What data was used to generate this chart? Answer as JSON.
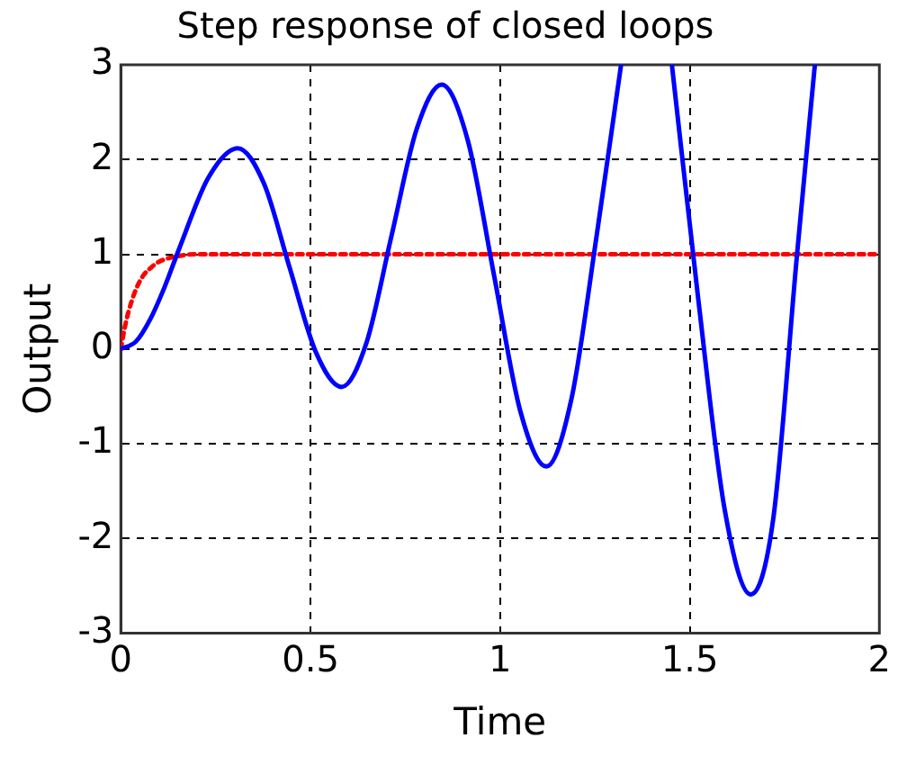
{
  "chart_data": {
    "type": "line",
    "title": "Step response of closed loops",
    "xlabel": "Time",
    "ylabel": "Output",
    "xlim": [
      0,
      2
    ],
    "xticks": [
      0,
      0.5,
      1,
      1.5,
      2
    ],
    "ylim": [
      -3,
      3
    ],
    "yticks": [
      -3,
      -2,
      -1,
      0,
      1,
      2,
      3
    ],
    "grid": true,
    "legend": false,
    "marker": "none",
    "series": [
      {
        "color": "#0000ff",
        "line_style": "solid",
        "x": [
          0,
          0.04,
          0.077,
          0.115,
          0.154,
          0.231,
          0.308,
          0.377,
          0.445,
          0.514,
          0.582,
          0.648,
          0.714,
          0.78,
          0.846,
          0.915,
          0.984,
          1.053,
          1.122,
          1.188,
          1.254,
          1.319,
          1.385,
          1.453,
          1.523,
          1.592,
          1.661,
          1.72,
          1.783,
          1.83
        ],
        "values": [
          0,
          0.08,
          0.31,
          0.65,
          1.06,
          1.81,
          2.12,
          1.75,
          0.86,
          -0.03,
          -0.4,
          0.07,
          1.2,
          2.32,
          2.79,
          2.2,
          0.78,
          -0.65,
          -1.24,
          -0.53,
          1.18,
          3,
          null,
          3,
          0.51,
          -1.69,
          -2.59,
          -1.8,
          1,
          3
        ]
      },
      {
        "color": "#ff0000",
        "line_style": "dotted",
        "x": [
          0,
          0.01,
          0.02,
          0.04,
          0.06,
          0.08,
          0.1,
          0.15,
          0.2,
          2
        ],
        "values": [
          0,
          0.22,
          0.39,
          0.63,
          0.78,
          0.86,
          0.92,
          0.98,
          1,
          1
        ]
      }
    ]
  }
}
